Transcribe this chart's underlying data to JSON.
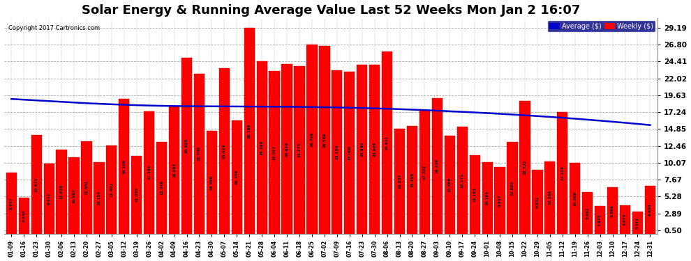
{
  "title": "Solar Energy & Running Average Value Last 52 Weeks Mon Jan 2 16:07",
  "copyright": "Copyright 2017 Cartronics.com",
  "categories": [
    "01-09",
    "01-16",
    "01-23",
    "01-30",
    "02-06",
    "02-13",
    "02-20",
    "02-27",
    "03-05",
    "03-12",
    "03-19",
    "03-26",
    "04-02",
    "04-09",
    "04-16",
    "04-23",
    "04-30",
    "05-07",
    "05-14",
    "05-21",
    "05-28",
    "06-04",
    "06-11",
    "06-18",
    "06-25",
    "07-02",
    "07-09",
    "07-16",
    "07-23",
    "07-30",
    "08-06",
    "08-13",
    "08-20",
    "08-27",
    "09-03",
    "09-10",
    "09-17",
    "09-24",
    "10-01",
    "10-08",
    "10-15",
    "10-22",
    "10-29",
    "11-05",
    "11-12",
    "11-19",
    "11-26",
    "12-03",
    "12-10",
    "12-17",
    "12-24",
    "12-31"
  ],
  "weekly_values": [
    8.647,
    5.145,
    13.973,
    9.912,
    11.938,
    10.803,
    13.081,
    10.154,
    12.492,
    19.108,
    11.05,
    17.393,
    13.049,
    18.065,
    24.925,
    22.7,
    14.59,
    23.424,
    16.108,
    29.188,
    24.396,
    23.027,
    24.019,
    23.773,
    26.796,
    26.569,
    23.15,
    23.0,
    23.98,
    23.985,
    25.831,
    14.837,
    15.295,
    17.552,
    19.236,
    13.866,
    15.171,
    11.163,
    10.185,
    9.447,
    12.993,
    18.792,
    9.031,
    10.268,
    17.226,
    10.069,
    5.961,
    3.975,
    6.569,
    4.074,
    3.111,
    6.83
  ],
  "average_values": [
    19.1,
    19.0,
    18.9,
    18.8,
    18.7,
    18.6,
    18.5,
    18.42,
    18.35,
    18.28,
    18.22,
    18.17,
    18.13,
    18.1,
    18.08,
    18.07,
    18.06,
    18.05,
    18.04,
    18.03,
    18.02,
    18.01,
    18.0,
    17.98,
    17.96,
    17.93,
    17.9,
    17.86,
    17.82,
    17.77,
    17.72,
    17.66,
    17.59,
    17.52,
    17.44,
    17.36,
    17.28,
    17.19,
    17.1,
    17.0,
    16.9,
    16.79,
    16.68,
    16.56,
    16.44,
    16.31,
    16.17,
    16.03,
    15.88,
    15.73,
    15.57,
    15.41
  ],
  "bar_color": "#ff0000",
  "bar_edge_color": "#cc0000",
  "line_color": "#0000cc",
  "background_color": "#ffffff",
  "plot_bg_color": "#ffffff",
  "grid_color": "#aaaaaa",
  "yticks": [
    0.5,
    2.89,
    5.28,
    7.67,
    10.07,
    12.46,
    14.85,
    17.24,
    19.63,
    22.02,
    24.41,
    26.8,
    29.19
  ],
  "ymin": 0.0,
  "ymax": 30.5,
  "title_fontsize": 13,
  "legend_bg_color": "#000080",
  "legend_avg_color": "#0000cc",
  "legend_weekly_color": "#ff0000",
  "legend_avg_label": "Average ($)",
  "legend_weekly_label": "Weekly ($)"
}
